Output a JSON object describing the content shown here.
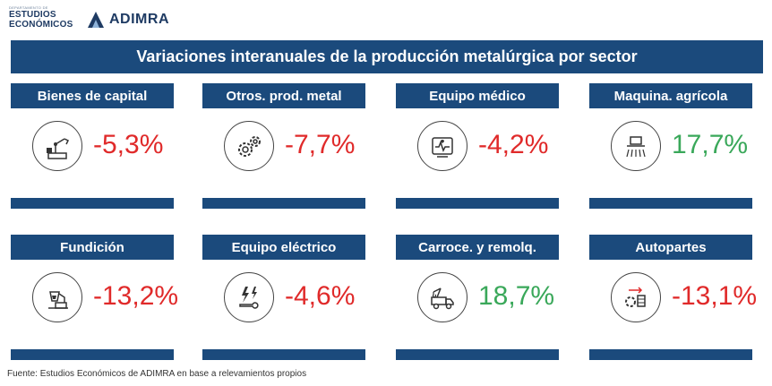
{
  "header": {
    "dept_small": "DEPARTAMENTO DE",
    "dept_line1": "ESTUDIOS",
    "dept_line2": "ECONÓMICOS",
    "org_name": "ADIMRA"
  },
  "banner": {
    "title": "Variaciones interanuales de la producción metalúrgica por sector"
  },
  "chart_data": {
    "type": "table",
    "title": "Variaciones interanuales de la producción metalúrgica por sector",
    "categories": [
      "Bienes de capital",
      "Otros. prod. metal",
      "Equipo médico",
      "Maquina. agrícola",
      "Fundición",
      "Equipo eléctrico",
      "Carroce. y remolq.",
      "Autopartes"
    ],
    "values": [
      -5.3,
      -7.7,
      -4.2,
      17.7,
      -13.2,
      -4.6,
      18.7,
      -13.1
    ],
    "labels": [
      "-5,3%",
      "-7,7%",
      "-4,2%",
      "17,7%",
      "-13,2%",
      "-4,6%",
      "18,7%",
      "-13,1%"
    ],
    "icons": [
      "robot-arm-icon",
      "gears-icon",
      "heart-monitor-icon",
      "tractor-icon",
      "foundry-crucible-icon",
      "electric-tool-icon",
      "tow-truck-icon",
      "engine-parts-icon"
    ],
    "colors": {
      "negative": "#e02a2a",
      "positive": "#3aa85a",
      "header": "#1b4a7c"
    }
  },
  "footer": {
    "source": "Fuente: Estudios Económicos de ADIMRA en base a relevamientos propios"
  }
}
